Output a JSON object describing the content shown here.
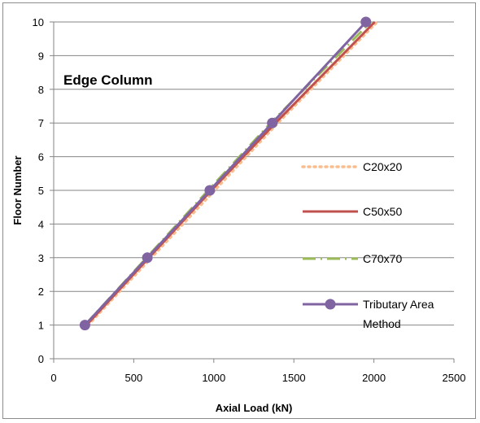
{
  "chart_data": {
    "type": "line",
    "title": "",
    "annotation": "Edge Column",
    "xlabel": "Axial Load (kN)",
    "ylabel": "Floor Number",
    "xlim": [
      0,
      2500
    ],
    "ylim": [
      0,
      10
    ],
    "xticks": [
      0,
      500,
      1000,
      1500,
      2000,
      2500
    ],
    "yticks": [
      0,
      1,
      2,
      3,
      4,
      5,
      6,
      7,
      8,
      9,
      10
    ],
    "grid": "horizontal",
    "legend_position": "right",
    "series": [
      {
        "name": "C20x20",
        "color": "#F9BE8F",
        "style": "dotted",
        "points": [
          [
            215,
            1
          ],
          [
            1005,
            5
          ],
          [
            1400,
            7
          ],
          [
            2020,
            10
          ]
        ]
      },
      {
        "name": "C50x50",
        "color": "#C0504D",
        "style": "solid",
        "points": [
          [
            205,
            1
          ],
          [
            985,
            5
          ],
          [
            1385,
            7
          ],
          [
            2005,
            10
          ]
        ]
      },
      {
        "name": "C70x70",
        "color": "#9BBB59",
        "style": "dashdot",
        "points": [
          [
            195,
            1
          ],
          [
            965,
            5
          ],
          [
            1355,
            7
          ],
          [
            1980,
            10
          ]
        ]
      },
      {
        "name": "Tributary Area Method",
        "name_lines": [
          "Tributary Area",
          "Method"
        ],
        "color": "#8064A2",
        "style": "solid-markers",
        "points": [
          [
            195,
            1
          ],
          [
            585,
            3
          ],
          [
            975,
            5
          ],
          [
            1365,
            7
          ],
          [
            1950,
            10
          ]
        ]
      }
    ]
  }
}
